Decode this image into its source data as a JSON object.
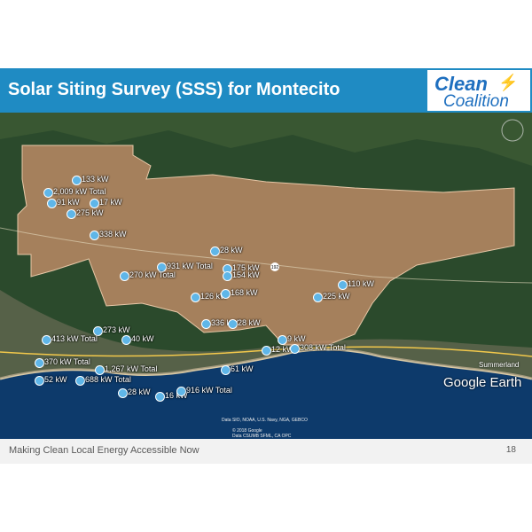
{
  "slide": {
    "title": "Solar Siting Survey (SSS) for Montecito",
    "logo_line1": "Clean",
    "logo_line2": "Coalition",
    "footer_text": "Making Clean Local Energy Accessible Now",
    "page_number": "18"
  },
  "map": {
    "brand": "Google Earth",
    "attribution_line1": "Data SIO, NOAA, U.S. Navy, NGA, GEBCO",
    "attribution_line2": "© 2018 Google",
    "attribution_line3": "Data CSUMB SFML, CA OPC",
    "road_shield": "192",
    "place_label": "Summerland",
    "colors": {
      "region_fill": "#c8906a",
      "ocean": "#0d3a6b",
      "land": "#2b4a2c",
      "title_bar": "#1f8bc3",
      "pin": "#5fb6e8"
    },
    "labels": [
      {
        "text": "133 kW"
      },
      {
        "text": "2,009 kW Total"
      },
      {
        "text": "91 kW"
      },
      {
        "text": "17 kW"
      },
      {
        "text": "275 kW"
      },
      {
        "text": "338 kW"
      },
      {
        "text": "28 kW"
      },
      {
        "text": "931 kW Total"
      },
      {
        "text": "175 kW"
      },
      {
        "text": "154 kW"
      },
      {
        "text": "270 kW Total"
      },
      {
        "text": "126 kW"
      },
      {
        "text": "168 kW"
      },
      {
        "text": "225 kW"
      },
      {
        "text": "110 kW"
      },
      {
        "text": "336 kW"
      },
      {
        "text": "28 kW"
      },
      {
        "text": "273 kW"
      },
      {
        "text": "413 kW Total"
      },
      {
        "text": "40 kW"
      },
      {
        "text": "9 kW"
      },
      {
        "text": "12 kW"
      },
      {
        "text": "308 kW Total"
      },
      {
        "text": "370 kW Total"
      },
      {
        "text": "1,267 kW Total"
      },
      {
        "text": "688 kW Total"
      },
      {
        "text": "52 kW"
      },
      {
        "text": "28 kW"
      },
      {
        "text": "16 kW"
      },
      {
        "text": "916 kW Total"
      },
      {
        "text": "61 kW"
      }
    ]
  }
}
